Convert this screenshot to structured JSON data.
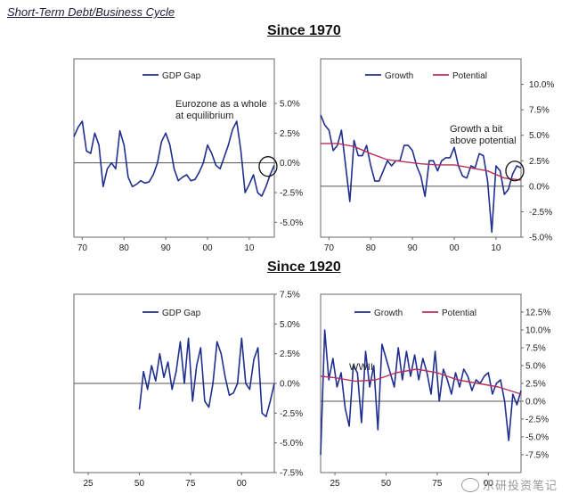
{
  "page_title": "Short-Term Debt/Business Cycle",
  "section_1970": "Since 1970",
  "section_1920": "Since 1920",
  "watermark": "乐研投资笔记",
  "colors": {
    "growth": "#1f2f8f",
    "potential": "#b8315a",
    "axis": "#555555",
    "zero": "#555555"
  },
  "chart_data": [
    {
      "id": "gap-1970",
      "type": "line",
      "xlim": [
        1968,
        2016
      ],
      "ylim": [
        -6.25,
        8.75
      ],
      "xticks": [
        1970,
        1980,
        1990,
        2000,
        2010
      ],
      "xtick_labels": [
        "70",
        "80",
        "90",
        "00",
        "10"
      ],
      "yticks": [
        -5,
        -2.5,
        0,
        2.5,
        5
      ],
      "ytick_labels": [
        "-5.0%",
        "-2.5%",
        "0.0%",
        "2.5%",
        "5.0%"
      ],
      "yaxis_side": "right",
      "legend": [
        "GDP Gap"
      ],
      "annotation": [
        "Eurozone as a whole",
        "at equilibrium"
      ],
      "circle": {
        "x": 2014.5,
        "y": -0.3
      },
      "series": [
        {
          "name": "GDP Gap",
          "color": "growth",
          "x": [
            1968,
            1969,
            1970,
            1971,
            1972,
            1973,
            1974,
            1975,
            1976,
            1977,
            1978,
            1979,
            1980,
            1981,
            1982,
            1983,
            1984,
            1985,
            1986,
            1987,
            1988,
            1989,
            1990,
            1991,
            1992,
            1993,
            1994,
            1995,
            1996,
            1997,
            1998,
            1999,
            2000,
            2001,
            2002,
            2003,
            2004,
            2005,
            2006,
            2007,
            2008,
            2009,
            2010,
            2011,
            2012,
            2013,
            2014,
            2015,
            2016
          ],
          "y": [
            2.2,
            3.0,
            3.5,
            1.0,
            0.8,
            2.5,
            1.5,
            -2.0,
            -0.5,
            0,
            -0.5,
            2.7,
            1.5,
            -1.2,
            -2.0,
            -1.8,
            -1.5,
            -1.7,
            -1.6,
            -1.0,
            0,
            1.8,
            2.5,
            1.5,
            -0.5,
            -1.5,
            -1.2,
            -1.0,
            -1.5,
            -1.4,
            -0.8,
            0.0,
            1.5,
            0.8,
            -0.2,
            -0.5,
            0.5,
            1.5,
            2.8,
            3.5,
            1.0,
            -2.5,
            -1.8,
            -1.0,
            -2.5,
            -2.8,
            -2.0,
            -1.0,
            -0.2
          ]
        }
      ]
    },
    {
      "id": "growth-1970",
      "type": "line",
      "xlim": [
        1968,
        2016
      ],
      "ylim": [
        -5,
        12.5
      ],
      "xticks": [
        1970,
        1980,
        1990,
        2000,
        2010
      ],
      "xtick_labels": [
        "70",
        "80",
        "90",
        "00",
        "10"
      ],
      "yticks": [
        -5,
        -2.5,
        0,
        2.5,
        5,
        7.5,
        10
      ],
      "ytick_labels": [
        "-5.0%",
        "-2.5%",
        "0.0%",
        "2.5%",
        "5.0%",
        "7.5%",
        "10.0%"
      ],
      "yaxis_side": "right",
      "legend": [
        "Growth",
        "Potential"
      ],
      "annotation": [
        "Growth a bit",
        "above potential"
      ],
      "circle": {
        "x": 2014.5,
        "y": 1.5
      },
      "series": [
        {
          "name": "Growth",
          "color": "growth",
          "x": [
            1968,
            1969,
            1970,
            1971,
            1972,
            1973,
            1974,
            1975,
            1976,
            1977,
            1978,
            1979,
            1980,
            1981,
            1982,
            1983,
            1984,
            1985,
            1986,
            1987,
            1988,
            1989,
            1990,
            1991,
            1992,
            1993,
            1994,
            1995,
            1996,
            1997,
            1998,
            1999,
            2000,
            2001,
            2002,
            2003,
            2004,
            2005,
            2006,
            2007,
            2008,
            2009,
            2010,
            2011,
            2012,
            2013,
            2014,
            2015,
            2016
          ],
          "y": [
            7.0,
            6.0,
            5.5,
            3.5,
            4.0,
            5.5,
            2.0,
            -1.5,
            4.5,
            3.0,
            3.0,
            4.0,
            2.0,
            0.5,
            0.5,
            1.5,
            2.5,
            2.0,
            2.5,
            2.5,
            4.0,
            4.0,
            3.5,
            2.0,
            1.0,
            -1.0,
            2.5,
            2.5,
            1.5,
            2.5,
            2.8,
            2.8,
            3.8,
            2.0,
            1.0,
            0.8,
            2.0,
            1.8,
            3.2,
            3.0,
            0.5,
            -4.5,
            2.0,
            1.5,
            -0.8,
            -0.3,
            1.2,
            2.0,
            1.8
          ]
        },
        {
          "name": "Potential",
          "color": "potential",
          "x": [
            1968,
            1972,
            1976,
            1980,
            1984,
            1988,
            1992,
            1996,
            2000,
            2004,
            2008,
            2012,
            2016
          ],
          "y": [
            4.2,
            4.2,
            3.9,
            3.2,
            2.6,
            2.4,
            2.2,
            2.1,
            2.1,
            1.8,
            1.5,
            0.8,
            0.6
          ]
        }
      ]
    },
    {
      "id": "gap-1920",
      "type": "line",
      "xlim": [
        1918,
        2016
      ],
      "ylim": [
        -7.5,
        7.5
      ],
      "xticks": [
        1925,
        1950,
        1975,
        2000
      ],
      "xtick_labels": [
        "25",
        "50",
        "75",
        "00"
      ],
      "yticks": [
        -7.5,
        -5,
        -2.5,
        0,
        2.5,
        5,
        7.5
      ],
      "ytick_labels": [
        "-7.5%",
        "-5.0%",
        "-2.5%",
        "0.0%",
        "2.5%",
        "5.0%",
        "7.5%"
      ],
      "yaxis_side": "right",
      "legend": [
        "GDP Gap"
      ],
      "series": [
        {
          "name": "GDP Gap",
          "color": "growth",
          "x": [
            1950,
            1952,
            1954,
            1956,
            1958,
            1960,
            1962,
            1964,
            1966,
            1968,
            1970,
            1972,
            1974,
            1976,
            1978,
            1980,
            1982,
            1984,
            1986,
            1988,
            1990,
            1992,
            1994,
            1996,
            1998,
            2000,
            2002,
            2004,
            2006,
            2008,
            2010,
            2012,
            2014,
            2016
          ],
          "y": [
            -2.2,
            1.0,
            -0.5,
            1.5,
            0.2,
            2.5,
            0.5,
            1.8,
            -0.5,
            1.0,
            3.5,
            0.0,
            3.8,
            -1.5,
            1.5,
            3.0,
            -1.5,
            -2.0,
            0.0,
            3.5,
            2.5,
            0.5,
            -1.0,
            -0.8,
            0.0,
            3.8,
            0.0,
            -0.5,
            2.0,
            3.0,
            -2.5,
            -2.8,
            -1.5,
            0.0
          ]
        }
      ]
    },
    {
      "id": "growth-1920",
      "type": "line",
      "xlim": [
        1918,
        2016
      ],
      "ylim": [
        -10,
        15
      ],
      "xticks": [
        1925,
        1950,
        1975,
        2000
      ],
      "xtick_labels": [
        "25",
        "50",
        "75",
        "00"
      ],
      "yticks": [
        -7.5,
        -5,
        -2.5,
        0,
        2.5,
        5,
        7.5,
        10,
        12.5
      ],
      "ytick_labels": [
        "-7.5%",
        "-5.0%",
        "-2.5%",
        "0.0%",
        "2.5%",
        "5.0%",
        "7.5%",
        "10.0%",
        "12.5%"
      ],
      "yaxis_side": "right",
      "legend": [
        "Growth",
        "Potential"
      ],
      "annotation": [
        "WWII"
      ],
      "series": [
        {
          "name": "Growth",
          "color": "growth",
          "x": [
            1918,
            1920,
            1922,
            1924,
            1926,
            1928,
            1930,
            1932,
            1934,
            1936,
            1938,
            1940,
            1942,
            1944,
            1946,
            1948,
            1950,
            1952,
            1954,
            1956,
            1958,
            1960,
            1962,
            1964,
            1966,
            1968,
            1970,
            1972,
            1974,
            1976,
            1978,
            1980,
            1982,
            1984,
            1986,
            1988,
            1990,
            1992,
            1994,
            1996,
            1998,
            2000,
            2002,
            2004,
            2006,
            2008,
            2010,
            2012,
            2014,
            2016
          ],
          "y": [
            -7.5,
            10.0,
            3.0,
            6.0,
            2.0,
            4.0,
            -1.0,
            -3.5,
            5.0,
            4.0,
            -3.0,
            7.0,
            2.0,
            5.0,
            -4.0,
            8.0,
            6.0,
            4.0,
            2.0,
            7.5,
            3.0,
            7.0,
            3.5,
            6.5,
            3.0,
            6.0,
            4.0,
            1.0,
            7.0,
            0.0,
            4.5,
            3.0,
            1.0,
            4.0,
            2.0,
            4.5,
            3.5,
            1.5,
            3.0,
            2.5,
            3.5,
            4.0,
            1.0,
            2.5,
            3.0,
            0.0,
            -5.5,
            1.0,
            -0.5,
            1.5
          ]
        },
        {
          "name": "Potential",
          "color": "potential",
          "x": [
            1918,
            1925,
            1935,
            1945,
            1955,
            1965,
            1975,
            1985,
            1995,
            2005,
            2016
          ],
          "y": [
            3.5,
            3.3,
            2.8,
            3.0,
            4.0,
            4.5,
            4.0,
            3.0,
            2.5,
            2.0,
            1.0
          ]
        }
      ]
    }
  ]
}
